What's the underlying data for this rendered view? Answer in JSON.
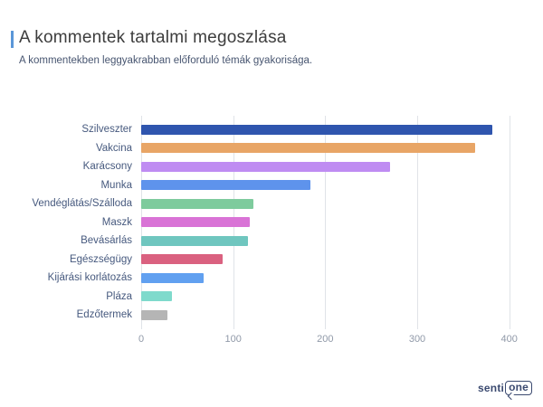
{
  "header": {
    "title": "A kommentek tartalmi megoszlása",
    "subtitle": "A kommentekben leggyakrabban előforduló témák gyakorisága.",
    "accent_color": "#5b97d8"
  },
  "chart_data": {
    "type": "bar",
    "orientation": "horizontal",
    "title": "A kommentek tartalmi megoszlása",
    "subtitle": "A kommentekben leggyakrabban előforduló témák gyakorisága.",
    "xlabel": "",
    "ylabel": "",
    "categories": [
      "Szilveszter",
      "Vakcina",
      "Karácsony",
      "Munka",
      "Vendéglátás/Szálloda",
      "Maszk",
      "Bevásárlás",
      "Egészségügy",
      "Kijárási korlátozás",
      "Pláza",
      "Edzőtermek"
    ],
    "values": [
      382,
      363,
      270,
      184,
      122,
      118,
      116,
      89,
      68,
      33,
      29
    ],
    "bar_colors": [
      "#2f55ae",
      "#e8a566",
      "#bf8cf2",
      "#5e93ec",
      "#7ecb9d",
      "#d973d6",
      "#6fc6bf",
      "#da6180",
      "#61a0f0",
      "#7fdacc",
      "#b5b5b5"
    ],
    "x_ticks": [
      0,
      100,
      200,
      300,
      400
    ],
    "xlim": [
      0,
      419
    ],
    "grid": true,
    "legend": "none",
    "gridline_color": "#e0e3e8",
    "category_label_color": "#46597e",
    "tick_label_color": "#9099a8"
  },
  "footer": {
    "logo": {
      "text": "senti",
      "boxed_text": "one",
      "color": "#3b4a70"
    }
  }
}
